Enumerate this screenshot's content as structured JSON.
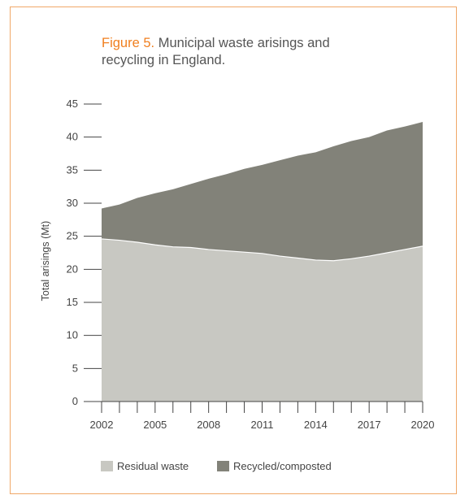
{
  "figure": {
    "label": "Figure 5.",
    "title": "Municipal waste arisings and recycling in England."
  },
  "chart_data": {
    "type": "area",
    "stacked": true,
    "title": "Figure 5. Municipal waste arisings and recycling in England.",
    "xlabel": "",
    "ylabel": "Total arisings (Mt)",
    "x": [
      2002,
      2003,
      2004,
      2005,
      2006,
      2007,
      2008,
      2009,
      2010,
      2011,
      2012,
      2013,
      2014,
      2015,
      2016,
      2017,
      2018,
      2019,
      2020
    ],
    "x_ticks": [
      "2002",
      "2005",
      "2008",
      "2011",
      "2014",
      "2017",
      "2020"
    ],
    "ylim": [
      0,
      45
    ],
    "y_ticks": [
      "0",
      "5",
      "10",
      "15",
      "20",
      "25",
      "30",
      "35",
      "40",
      "45"
    ],
    "series": [
      {
        "name": "Residual waste",
        "color": "#c8c8c2",
        "values": [
          24.6,
          24.4,
          24.1,
          23.7,
          23.4,
          23.3,
          23.0,
          22.8,
          22.6,
          22.4,
          22.0,
          21.7,
          21.4,
          21.3,
          21.6,
          22.0,
          22.5,
          23.0,
          23.5
        ]
      },
      {
        "name": "Recycled/composted",
        "color": "#828279",
        "values": [
          4.6,
          5.4,
          6.7,
          7.8,
          8.7,
          9.6,
          10.7,
          11.6,
          12.6,
          13.4,
          14.5,
          15.5,
          16.3,
          17.3,
          17.8,
          18.0,
          18.5,
          18.6,
          18.8
        ]
      }
    ],
    "grid": false,
    "legend_position": "bottom"
  }
}
